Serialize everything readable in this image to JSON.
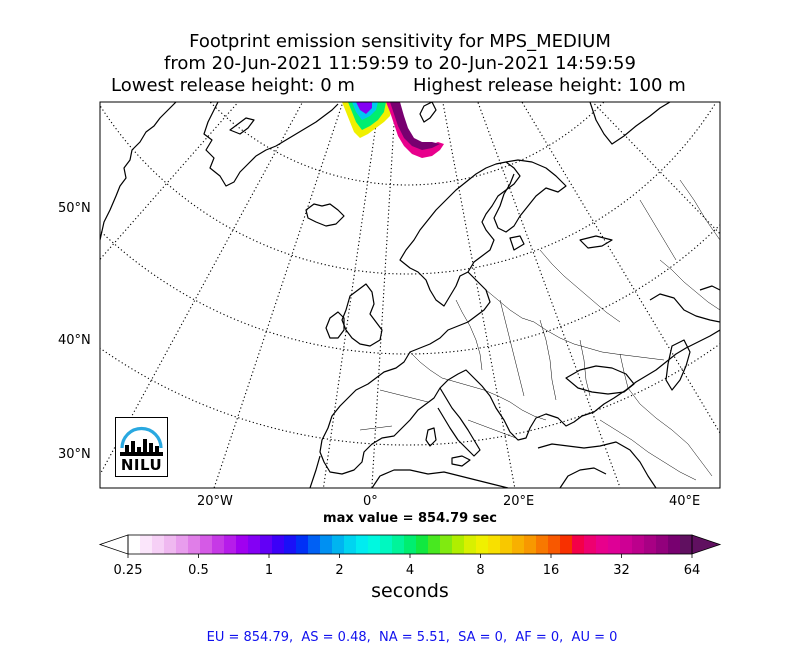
{
  "title": {
    "line1": "Footprint emission sensitivity for MPS_MEDIUM",
    "line2": "from 20-Jun-2021 11:59:59 to 20-Jun-2021 14:59:59",
    "lowest": "Lowest release height: 0 m",
    "highest": "Highest release height: 100 m"
  },
  "map": {
    "lat_labels": [
      "50°N",
      "40°N",
      "30°N"
    ],
    "lon_labels": [
      "20°W",
      "0°",
      "20°E",
      "40°E"
    ],
    "max_value_text": "max value = 854.79 sec",
    "land_color": "#ffffff",
    "coast_color": "#000000",
    "gridline_style": "dotted"
  },
  "logo": {
    "text": "NILU",
    "icon": "nilu-logo-icon",
    "arc_color": "#29a8e0"
  },
  "colorbar": {
    "ticks": [
      "0.25",
      "0.5",
      "1",
      "2",
      "4",
      "8",
      "16",
      "32",
      "64"
    ],
    "unit": "seconds",
    "colors": [
      "#ffffff",
      "#fbe6fb",
      "#f6d0f6",
      "#efb8f0",
      "#e89ded",
      "#e07ee8",
      "#d55ae6",
      "#c639e6",
      "#b61cea",
      "#a000f0",
      "#8400f4",
      "#6200f6",
      "#3c00f8",
      "#1a10f8",
      "#0030f6",
      "#0060f4",
      "#0090f2",
      "#00b4f0",
      "#00d4f0",
      "#00ecf0",
      "#00f8e0",
      "#00f8c0",
      "#00f49a",
      "#00ee70",
      "#10e840",
      "#48e820",
      "#80ea10",
      "#b0ee00",
      "#d8f000",
      "#f0f000",
      "#f8e000",
      "#f8c800",
      "#f8b000",
      "#f89800",
      "#f87800",
      "#f85800",
      "#f83000",
      "#f40048",
      "#ee0070",
      "#e8008c",
      "#de0096",
      "#ce0094",
      "#bc008c",
      "#a80084",
      "#92007c",
      "#780070",
      "#601060"
    ]
  },
  "stats": {
    "text": "EU = 854.79,  AS = 0.48,  NA = 5.51,  SA = 0,  AF = 0,  AU = 0"
  }
}
